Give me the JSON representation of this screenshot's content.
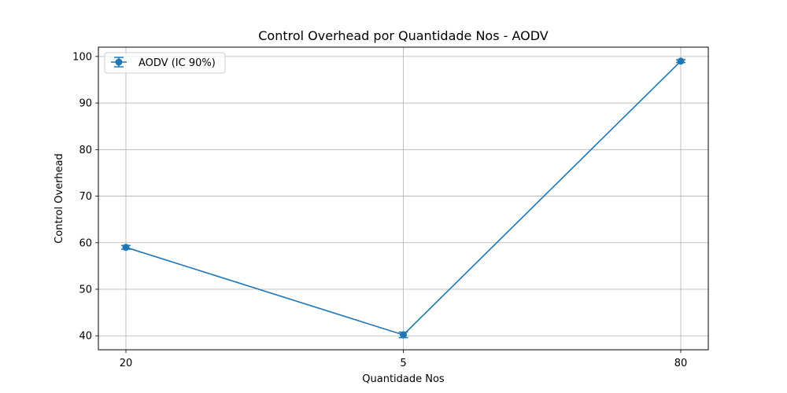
{
  "chart_data": {
    "type": "line",
    "title": "Control Overhead por Quantidade Nos - AODV",
    "xlabel": "Quantidade Nos",
    "ylabel": "Control Overhead",
    "categories": [
      "20",
      "5",
      "80"
    ],
    "ylim": [
      37,
      102
    ],
    "yticks": [
      40,
      50,
      60,
      70,
      80,
      90,
      100
    ],
    "grid": true,
    "legend_position": "top-left",
    "series": [
      {
        "name": "AODV (IC 90%)",
        "values": [
          59.0,
          40.2,
          99.0
        ],
        "errors": [
          0.4,
          0.6,
          0.3
        ],
        "color": "#1f77b4",
        "marker": "circle"
      }
    ]
  }
}
